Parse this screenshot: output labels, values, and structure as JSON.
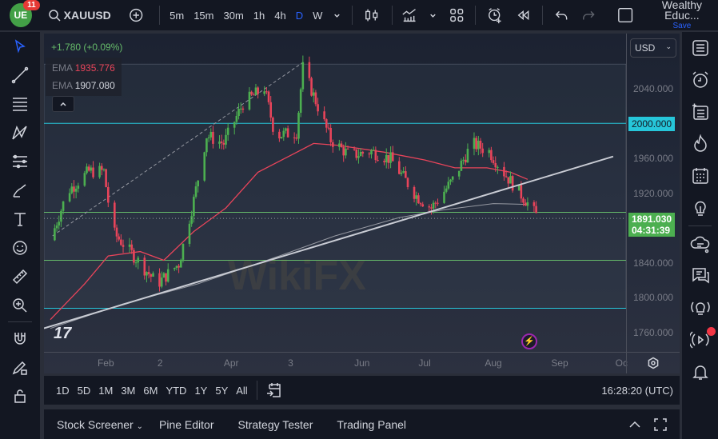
{
  "topbar": {
    "notification_count": "11",
    "symbol": "XAUUSD",
    "intervals": [
      "5m",
      "15m",
      "30m",
      "1h",
      "4h",
      "D",
      "W"
    ],
    "active_interval": "D",
    "layout_name": "Wealthy Educ...",
    "save_label": "Save"
  },
  "legend": {
    "change": "+1.780 (+0.09%)",
    "ema1_label": "EMA",
    "ema1_value": "1935.776",
    "ema2_label": "EMA",
    "ema2_value": "1907.080"
  },
  "price_axis": {
    "currency": "USD",
    "labels": [
      "2040.000",
      "1960.000",
      "1920.000",
      "1840.000",
      "1800.000",
      "1760.000"
    ],
    "level_label": "2000.000",
    "last_price": "1891.030",
    "countdown": "04:31:39"
  },
  "time_axis": {
    "labels": [
      "Feb",
      "2",
      "Apr",
      "3",
      "Jun",
      "Jul",
      "Aug",
      "Sep",
      "Oc"
    ]
  },
  "range_bar": {
    "ranges": [
      "1D",
      "5D",
      "1M",
      "3M",
      "6M",
      "YTD",
      "1Y",
      "5Y",
      "All"
    ],
    "clock": "16:28:20 (UTC)"
  },
  "bottom_tabs": [
    "Stock Screener",
    "Pine Editor",
    "Strategy Tester",
    "Trading Panel"
  ],
  "colors": {
    "up": "#4caf50",
    "down": "#e8445a",
    "accent": "#2962ff",
    "level_cyan": "#26c6da",
    "level_green": "#66bb6a",
    "ema_fast": "#e8445a",
    "ema_slow": "#9598a1"
  },
  "chart_data": {
    "type": "candlestick",
    "symbol": "XAUUSD",
    "interval": "D",
    "ylim": [
      1738,
      2103
    ],
    "xlim": [
      "2023-01-04",
      "2023-10-03"
    ],
    "y_ticks": [
      2040,
      1960,
      1920,
      1840,
      1800,
      1760
    ],
    "x_ticks": [
      {
        "date": "2023-02-01",
        "label": "Feb"
      },
      {
        "date": "2023-03-01",
        "label": "2"
      },
      {
        "date": "2023-04-01",
        "label": "Apr"
      },
      {
        "date": "2023-05-01",
        "label": "3"
      },
      {
        "date": "2023-06-01",
        "label": "Jun"
      },
      {
        "date": "2023-07-01",
        "label": "Jul"
      },
      {
        "date": "2023-08-01",
        "label": "Aug"
      },
      {
        "date": "2023-09-01",
        "label": "Sep"
      },
      {
        "date": "2023-10-01",
        "label": "Oc"
      }
    ],
    "close_path": [
      [
        "2023-01-07",
        1866
      ],
      [
        "2023-01-15",
        1922
      ],
      [
        "2023-01-25",
        1945
      ],
      [
        "2023-02-01",
        1945
      ],
      [
        "2023-02-05",
        1876
      ],
      [
        "2023-02-15",
        1848
      ],
      [
        "2023-02-26",
        1816
      ],
      [
        "2023-03-08",
        1839
      ],
      [
        "2023-03-15",
        1912
      ],
      [
        "2023-03-21",
        1986
      ],
      [
        "2023-03-29",
        1977
      ],
      [
        "2023-04-07",
        2023
      ],
      [
        "2023-04-17",
        2041
      ],
      [
        "2023-04-22",
        1986
      ],
      [
        "2023-05-02",
        1990
      ],
      [
        "2023-05-05",
        2064
      ],
      [
        "2023-05-10",
        2032
      ],
      [
        "2023-05-18",
        1981
      ],
      [
        "2023-05-27",
        1963
      ],
      [
        "2023-06-06",
        1968
      ],
      [
        "2023-06-15",
        1959
      ],
      [
        "2023-06-27",
        1917
      ],
      [
        "2023-07-04",
        1903
      ],
      [
        "2023-07-14",
        1935
      ],
      [
        "2023-07-23",
        1977
      ],
      [
        "2023-07-31",
        1968
      ],
      [
        "2023-08-08",
        1940
      ],
      [
        "2023-08-17",
        1912
      ],
      [
        "2023-08-23",
        1891
      ]
    ],
    "ema_fast": [
      [
        "2023-01-07",
        1775
      ],
      [
        "2023-01-23",
        1816
      ],
      [
        "2023-02-03",
        1848
      ],
      [
        "2023-02-18",
        1853
      ],
      [
        "2023-03-01",
        1843
      ],
      [
        "2023-03-15",
        1876
      ],
      [
        "2023-03-30",
        1903
      ],
      [
        "2023-04-14",
        1944
      ],
      [
        "2023-04-29",
        1963
      ],
      [
        "2023-05-10",
        1977
      ],
      [
        "2023-05-21",
        1975
      ],
      [
        "2023-06-12",
        1967
      ],
      [
        "2023-07-01",
        1958
      ],
      [
        "2023-07-15",
        1949
      ],
      [
        "2023-07-30",
        1949
      ],
      [
        "2023-08-10",
        1944
      ],
      [
        "2023-08-18",
        1935.776
      ]
    ],
    "ema_slow": [
      [
        "2023-01-07",
        1765
      ],
      [
        "2023-02-10",
        1793
      ],
      [
        "2023-03-17",
        1816
      ],
      [
        "2023-04-24",
        1848
      ],
      [
        "2023-05-20",
        1871
      ],
      [
        "2023-06-19",
        1892
      ],
      [
        "2023-07-10",
        1901
      ],
      [
        "2023-08-02",
        1908
      ],
      [
        "2023-08-18",
        1907.08
      ]
    ],
    "horizontal_levels": [
      {
        "price": 2000,
        "color": "cyan"
      },
      {
        "price": 1898,
        "color": "green"
      },
      {
        "price": 1843,
        "color": "green"
      },
      {
        "price": 1788,
        "color": "cyan"
      }
    ],
    "trendline": [
      [
        "2023-01-04",
        1765
      ],
      [
        "2023-09-27",
        1962
      ]
    ],
    "dashed_line": [
      [
        "2023-01-08",
        1871
      ],
      [
        "2023-05-05",
        2070
      ]
    ],
    "last_price": 1891.03
  }
}
